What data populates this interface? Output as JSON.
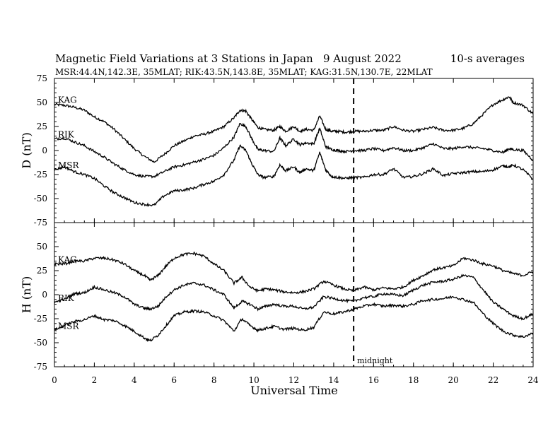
{
  "chart_data": {
    "type": "line",
    "title": "Magnetic Field Variations at 3 Stations in Japan",
    "date_text": "9   August  2022",
    "averages_text": "10-s averages",
    "subtitle": "MSR:44.4N,142.3E, 35MLAT;  RIK:43.5N,143.8E, 35MLAT;  KAG:31.5N,130.7E, 22MLAT",
    "xlabel": "Universal Time",
    "xlim": [
      0,
      24
    ],
    "xticks": [
      0,
      2,
      4,
      6,
      8,
      10,
      12,
      14,
      16,
      18,
      20,
      22,
      24
    ],
    "annotation": {
      "text": "midnight",
      "x": 15
    },
    "panels": [
      {
        "ylabel": "D (nT)",
        "ylim": [
          -75,
          75
        ],
        "yticks": [
          75,
          50,
          25,
          0,
          -25,
          -50,
          -75
        ],
        "series": [
          {
            "name": "KAG",
            "x": [
              0,
              0.5,
              1,
              1.5,
              2,
              2.5,
              3,
              3.5,
              4,
              4.5,
              5,
              5.5,
              6,
              6.5,
              7,
              7.5,
              8,
              8.5,
              9,
              9.3,
              9.6,
              9.9,
              10.2,
              10.5,
              11,
              11.3,
              11.6,
              12,
              12.3,
              12.6,
              13,
              13.3,
              13.6,
              13.9,
              14.2,
              14.6,
              15,
              15.5,
              16,
              16.5,
              17,
              17.5,
              18,
              18.5,
              19,
              19.5,
              20,
              20.5,
              21,
              21.5,
              22,
              22.5,
              22.8,
              23,
              23.5,
              24
            ],
            "y": [
              48,
              47,
              45,
              42,
              35,
              30,
              22,
              12,
              2,
              -6,
              -12,
              -4,
              5,
              10,
              15,
              17,
              20,
              25,
              34,
              42,
              41,
              32,
              24,
              22,
              21,
              25,
              20,
              25,
              20,
              22,
              21,
              36,
              22,
              20,
              20,
              19,
              20,
              20,
              21,
              21,
              25,
              21,
              20,
              22,
              24,
              21,
              21,
              23,
              28,
              38,
              48,
              53,
              56,
              50,
              47,
              38
            ]
          },
          {
            "name": "RIK",
            "x": [
              0,
              0.5,
              1,
              1.5,
              2,
              2.5,
              3,
              3.5,
              4,
              4.5,
              5,
              5.5,
              6,
              6.5,
              7,
              7.5,
              8,
              8.5,
              9,
              9.3,
              9.6,
              9.9,
              10.2,
              10.5,
              11,
              11.3,
              11.6,
              12,
              12.3,
              12.6,
              13,
              13.3,
              13.6,
              13.9,
              14.2,
              14.6,
              15,
              15.5,
              16,
              16.5,
              17,
              17.5,
              18,
              18.5,
              19,
              19.5,
              20,
              20.5,
              21,
              21.5,
              22,
              22.5,
              22.8,
              23,
              23.5,
              24
            ],
            "y": [
              12,
              13,
              9,
              5,
              -1,
              -7,
              -14,
              -20,
              -25,
              -27,
              -27,
              -22,
              -17,
              -15,
              -12,
              -9,
              -5,
              3,
              14,
              28,
              25,
              12,
              1,
              0,
              -1,
              13,
              5,
              12,
              6,
              8,
              7,
              23,
              4,
              1,
              0,
              -1,
              0,
              0,
              2,
              0,
              3,
              0,
              0,
              3,
              7,
              2,
              2,
              4,
              3,
              2,
              0,
              -2,
              2,
              1,
              0,
              -10
            ]
          },
          {
            "name": "MSR",
            "x": [
              0,
              0.5,
              1,
              1.5,
              2,
              2.5,
              3,
              3.5,
              4,
              4.5,
              5,
              5.5,
              6,
              6.5,
              7,
              7.5,
              8,
              8.5,
              9,
              9.3,
              9.6,
              9.9,
              10.2,
              10.5,
              11,
              11.3,
              11.6,
              12,
              12.3,
              12.6,
              13,
              13.3,
              13.6,
              13.9,
              14.2,
              14.6,
              15,
              15.5,
              16,
              16.5,
              17,
              17.5,
              18,
              18.5,
              19,
              19.5,
              20,
              20.5,
              21,
              21.5,
              22,
              22.5,
              22.8,
              23,
              23.5,
              24
            ],
            "y": [
              -20,
              -17,
              -22,
              -25,
              -29,
              -37,
              -44,
              -49,
              -54,
              -56,
              -57,
              -47,
              -42,
              -41,
              -39,
              -35,
              -32,
              -25,
              -10,
              5,
              0,
              -14,
              -25,
              -28,
              -27,
              -15,
              -21,
              -17,
              -23,
              -19,
              -21,
              -2,
              -20,
              -27,
              -28,
              -29,
              -28,
              -28,
              -25,
              -25,
              -19,
              -28,
              -27,
              -24,
              -19,
              -26,
              -24,
              -23,
              -22,
              -22,
              -20,
              -16,
              -17,
              -15,
              -20,
              -30
            ]
          }
        ]
      },
      {
        "ylabel": "H (nT)",
        "ylim": [
          -75,
          75
        ],
        "yticks": [
          75,
          50,
          25,
          0,
          -25,
          -50,
          -75
        ],
        "series": [
          {
            "name": "KAG",
            "x": [
              0,
              0.5,
              1,
              1.5,
              2,
              2.5,
              3,
              3.5,
              4,
              4.5,
              4.8,
              5.2,
              5.6,
              6,
              6.5,
              7,
              7.5,
              8,
              8.5,
              9,
              9.4,
              9.8,
              10.2,
              10.6,
              11,
              11.5,
              12,
              12.5,
              13,
              13.5,
              14,
              14.5,
              15,
              15.5,
              16,
              16.5,
              17,
              17.5,
              18,
              18.5,
              19,
              19.5,
              20,
              20.5,
              21,
              21.5,
              22,
              22.5,
              23,
              23.5,
              24
            ],
            "y": [
              32,
              32,
              35,
              35,
              38,
              38,
              36,
              32,
              25,
              20,
              15,
              20,
              30,
              38,
              42,
              43,
              40,
              32,
              25,
              12,
              18,
              8,
              4,
              6,
              5,
              3,
              2,
              3,
              6,
              14,
              10,
              6,
              4,
              8,
              5,
              7,
              6,
              8,
              15,
              20,
              26,
              28,
              30,
              38,
              36,
              32,
              30,
              25,
              22,
              20,
              24
            ]
          },
          {
            "name": "RIK",
            "x": [
              0,
              0.5,
              1,
              1.5,
              2,
              2.5,
              3,
              3.5,
              4,
              4.5,
              4.8,
              5.2,
              5.6,
              6,
              6.5,
              7,
              7.5,
              8,
              8.5,
              9,
              9.4,
              9.8,
              10.2,
              10.6,
              11,
              11.5,
              12,
              12.5,
              13,
              13.5,
              14,
              14.5,
              15,
              15.5,
              16,
              16.5,
              17,
              17.5,
              18,
              18.5,
              19,
              19.5,
              20,
              20.5,
              21,
              21.5,
              22,
              22.5,
              23,
              23.5,
              24
            ],
            "y": [
              -8,
              -5,
              1,
              2,
              8,
              5,
              2,
              -2,
              -10,
              -14,
              -15,
              -12,
              -2,
              5,
              10,
              12,
              10,
              5,
              0,
              -14,
              -7,
              -10,
              -15,
              -12,
              -10,
              -12,
              -12,
              -15,
              -13,
              -2,
              -4,
              -6,
              -7,
              -3,
              -2,
              1,
              0,
              -1,
              5,
              10,
              13,
              14,
              16,
              20,
              18,
              5,
              -8,
              -15,
              -22,
              -25,
              -20
            ]
          },
          {
            "name": "MSR",
            "x": [
              0,
              0.5,
              1,
              1.5,
              2,
              2.5,
              3,
              3.5,
              4,
              4.5,
              4.8,
              5.2,
              5.6,
              6,
              6.5,
              7,
              7.5,
              8,
              8.5,
              9,
              9.4,
              9.8,
              10.2,
              10.6,
              11,
              11.5,
              12,
              12.5,
              13,
              13.5,
              14,
              14.5,
              15,
              15.5,
              16,
              16.5,
              17,
              17.5,
              18,
              18.5,
              19,
              19.5,
              20,
              20.5,
              21,
              21.5,
              22,
              22.5,
              23,
              23.5,
              24
            ],
            "y": [
              -37,
              -32,
              -28,
              -26,
              -22,
              -26,
              -27,
              -32,
              -38,
              -45,
              -48,
              -42,
              -32,
              -22,
              -18,
              -17,
              -18,
              -22,
              -27,
              -38,
              -25,
              -32,
              -37,
              -35,
              -33,
              -36,
              -35,
              -37,
              -34,
              -18,
              -20,
              -18,
              -15,
              -12,
              -10,
              -12,
              -11,
              -12,
              -10,
              -6,
              -5,
              -4,
              -2,
              -5,
              -8,
              -20,
              -30,
              -38,
              -42,
              -44,
              -40
            ]
          }
        ]
      }
    ]
  }
}
